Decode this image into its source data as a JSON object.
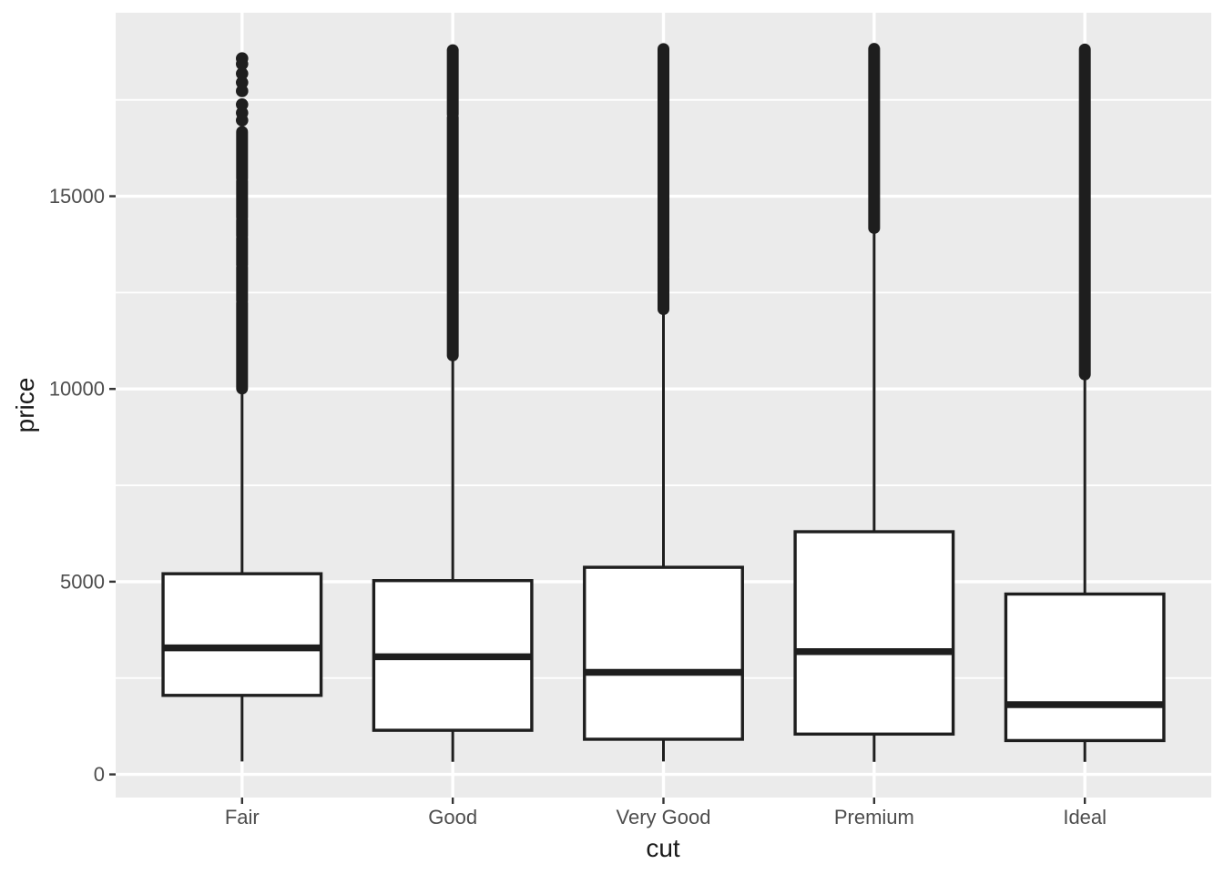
{
  "chart_data": {
    "type": "boxplot",
    "xlabel": "cut",
    "ylabel": "price",
    "categories": [
      "Fair",
      "Good",
      "Very Good",
      "Premium",
      "Ideal"
    ],
    "y_major_ticks": [
      0,
      5000,
      10000,
      15000
    ],
    "y_minor_ticks": [
      2500,
      7500,
      12500,
      17500
    ],
    "ylim": [
      -600,
      19760
    ],
    "grid": true,
    "legend": "none",
    "series": [
      {
        "category": "Fair",
        "whisker_low": 337,
        "q1": 2050,
        "median": 3282,
        "q3": 5206,
        "whisker_high": 9920,
        "outlier_dots": [
          18574,
          18430,
          18180,
          17950,
          17730,
          17380,
          17160,
          16970
        ],
        "outlier_segments": [
          [
            16670,
            15465
          ],
          [
            15394,
            14450
          ],
          [
            14379,
            13977
          ],
          [
            13906,
            13221
          ],
          [
            13150,
            12300
          ],
          [
            12229,
            10010
          ]
        ]
      },
      {
        "category": "Good",
        "whisker_low": 327,
        "q1": 1145,
        "median": 3051,
        "q3": 5028,
        "whisker_high": 10820,
        "outlier_dots": [],
        "outlier_segments": [
          [
            18788,
            17130
          ],
          [
            17040,
            10870
          ]
        ]
      },
      {
        "category": "Very Good",
        "whisker_low": 336,
        "q1": 912,
        "median": 2648,
        "q3": 5373,
        "whisker_high": 12030,
        "outlier_dots": [],
        "outlier_segments": [
          [
            18818,
            13430
          ],
          [
            13380,
            12070
          ]
        ]
      },
      {
        "category": "Premium",
        "whisker_low": 326,
        "q1": 1046,
        "median": 3185,
        "q3": 6296,
        "whisker_high": 14160,
        "outlier_dots": [],
        "outlier_segments": [
          [
            18823,
            14175
          ]
        ]
      },
      {
        "category": "Ideal",
        "whisker_low": 326,
        "q1": 878,
        "median": 1810,
        "q3": 4679,
        "whisker_high": 10370,
        "outlier_dots": [],
        "outlier_segments": [
          [
            18806,
            10376
          ]
        ]
      }
    ],
    "colors": {
      "panel_bg": "#EBEBEB",
      "grid": "#FFFFFF",
      "box_fill": "#FFFFFF",
      "box_stroke": "#1E1E1E",
      "outlier": "#1E1E1E",
      "tick_mark": "#333333",
      "tick_label": "#4D4D4D",
      "axis_title": "#1A1A1A"
    }
  }
}
